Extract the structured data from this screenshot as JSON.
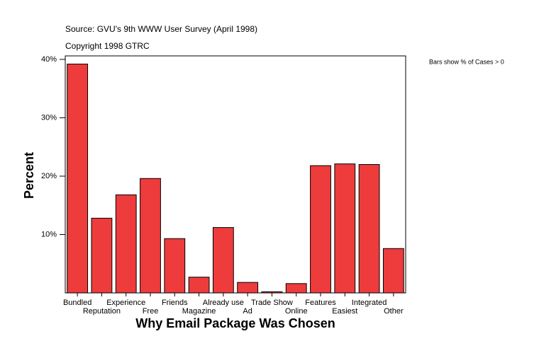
{
  "chart_data": {
    "type": "bar",
    "source": "Source: GVU's 9th WWW User Survey (April 1998)",
    "copyright": "Copyright 1998 GTRC",
    "note": "Bars show % of Cases > 0",
    "y_label": "Percent",
    "x_label": "Why Email Package Was Chosen",
    "categories": [
      "Bundled",
      "Reputation",
      "Experience",
      "Free",
      "Friends",
      "Magazine",
      "Already use",
      "Ad",
      "Trade Show",
      "Online",
      "Features",
      "Easiest",
      "Integrated",
      "Other"
    ],
    "values": [
      39.2,
      12.8,
      16.8,
      19.6,
      9.3,
      2.7,
      11.2,
      1.8,
      0.2,
      1.6,
      21.8,
      22.1,
      22.0,
      7.6
    ],
    "color": "#ee3b3b",
    "ylim": [
      0,
      40.6
    ],
    "yticks": [
      {
        "value": 10,
        "label": "10%"
      },
      {
        "value": 20,
        "label": "20%"
      },
      {
        "value": 30,
        "label": "30%"
      },
      {
        "value": 40,
        "label": "40%"
      }
    ]
  }
}
